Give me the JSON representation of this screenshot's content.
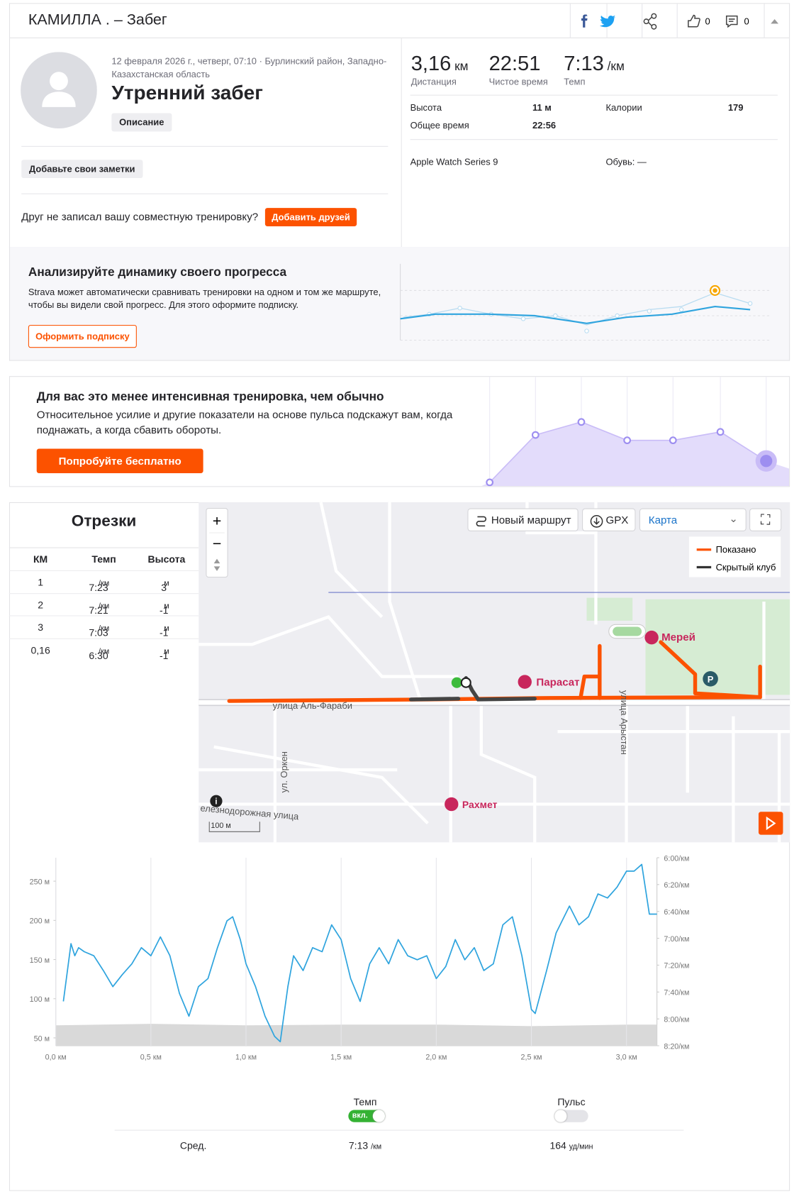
{
  "header": {
    "title": "КАМИЛЛА . – Забег",
    "kudos": "0",
    "comments": "0"
  },
  "activity": {
    "meta": "12 февраля 2026 г., четверг, 07:10 · Бурлинский район, Западно-Казахстанская область",
    "name": "Утренний забег",
    "description_button": "Описание",
    "notes_button": "Добавьте свои заметки",
    "friends_text": "Друг не записал вашу совместную тренировку?",
    "friends_button": "Добавить друзей"
  },
  "stats": {
    "primary": [
      {
        "value": "3,16",
        "unit": "км",
        "label": "Дистанция"
      },
      {
        "value": "22:51",
        "label": "Чистое время"
      },
      {
        "value": "7:13",
        "unit": "/км",
        "label": "Темп"
      }
    ],
    "secondary": [
      {
        "label": "Высота",
        "value": "11 м"
      },
      {
        "label": "Калории",
        "value": "179"
      },
      {
        "label": "Общее время",
        "value": "22:56"
      }
    ],
    "device": "Apple Watch Series 9",
    "shoes": "Обувь: —"
  },
  "progress_promo": {
    "title": "Анализируйте динамику своего прогресса",
    "text": "Strava может автоматически сравнивать тренировки на одном и том же маршруте, чтобы вы видели свой прогресс. Для этого оформите подписку.",
    "button": "Оформить подписку"
  },
  "intensity_promo": {
    "title": "Для вас это менее интенсивная тренировка, чем обычно",
    "text": "Относительное усилие и другие показатели на основе пульса подскажут вам, когда поднажать, а когда сбавить обороты.",
    "button": "Попробуйте бесплатно"
  },
  "splits": {
    "title": "Отрезки",
    "columns": [
      "КМ",
      "Темп",
      "Высота"
    ],
    "rows": [
      {
        "km": "1",
        "pace": "7:23",
        "pace_unit": "/км",
        "elev": "3",
        "elev_unit": "м"
      },
      {
        "km": "2",
        "pace": "7:21",
        "pace_unit": "/км",
        "elev": "-1",
        "elev_unit": "м"
      },
      {
        "km": "3",
        "pace": "7:03",
        "pace_unit": "/км",
        "elev": "-1",
        "elev_unit": "м"
      },
      {
        "km": "0,16",
        "pace": "6:30",
        "pace_unit": "/км",
        "elev": "-1",
        "elev_unit": "м"
      }
    ]
  },
  "map": {
    "new_route": "Новый маршрут",
    "gpx": "GPX",
    "map_type": "Карта",
    "legend": [
      "Показано",
      "Скрытый клуб"
    ],
    "places": [
      "Мерей",
      "Парасат",
      "Рахмет"
    ],
    "streets": [
      "улица Аль-Фараби",
      "улица Арыстан",
      "ул. Оркен",
      "елезнодорожная улица"
    ],
    "scale": "100 м"
  },
  "chart": {
    "type": "line",
    "xlim": [
      0,
      3.16
    ],
    "xticks": [
      {
        "value": 0,
        "label": "0,0 км"
      },
      {
        "value": 0.5,
        "label": "0,5 км"
      },
      {
        "value": 1,
        "label": "1,0 км"
      },
      {
        "value": 1.5,
        "label": "1,5 км"
      },
      {
        "value": 2,
        "label": "2,0 км"
      },
      {
        "value": 2.5,
        "label": "2,5 км"
      },
      {
        "value": 3,
        "label": "3,0 км"
      }
    ],
    "ylim": [
      40,
      280
    ],
    "yticks": [
      {
        "value": 50,
        "label": "50 м"
      },
      {
        "value": 100,
        "label": "100 м"
      },
      {
        "value": 150,
        "label": "150 м"
      },
      {
        "value": 200,
        "label": "200 м"
      },
      {
        "value": 250,
        "label": "250 м"
      }
    ],
    "y2lim": [
      360,
      500
    ],
    "y2_inverted": true,
    "y2ticks": [
      {
        "value": 360,
        "label": "6:00/км"
      },
      {
        "value": 380,
        "label": "6:20/км"
      },
      {
        "value": 400,
        "label": "6:40/км"
      },
      {
        "value": 420,
        "label": "7:00/км"
      },
      {
        "value": 440,
        "label": "7:20/км"
      },
      {
        "value": 460,
        "label": "7:40/км"
      },
      {
        "value": 480,
        "label": "8:00/км"
      },
      {
        "value": 500,
        "label": "8:20/км"
      }
    ],
    "grid": "x",
    "area": {
      "color": "#d9d9d9",
      "x": [
        0,
        0.5,
        1,
        1.5,
        2,
        2.5,
        3,
        3.16
      ],
      "values": [
        66,
        68,
        66,
        67,
        67,
        65,
        67,
        67
      ]
    },
    "series": [
      {
        "color": "#2fa4de",
        "axis": "y2",
        "x": [
          0.04,
          0.08,
          0.1,
          0.12,
          0.15,
          0.2,
          0.25,
          0.3,
          0.35,
          0.4,
          0.45,
          0.5,
          0.55,
          0.6,
          0.65,
          0.7,
          0.75,
          0.8,
          0.85,
          0.9,
          0.93,
          0.97,
          1.0,
          1.05,
          1.1,
          1.15,
          1.18,
          1.22,
          1.25,
          1.3,
          1.35,
          1.4,
          1.45,
          1.5,
          1.55,
          1.6,
          1.65,
          1.7,
          1.75,
          1.8,
          1.85,
          1.9,
          1.95,
          2.0,
          2.05,
          2.1,
          2.15,
          2.2,
          2.25,
          2.3,
          2.35,
          2.4,
          2.45,
          2.5,
          2.52,
          2.58,
          2.63,
          2.7,
          2.75,
          2.8,
          2.85,
          2.9,
          2.95,
          3.0,
          3.04,
          3.08,
          3.12,
          3.16
        ],
        "values": [
          467,
          424,
          433,
          427,
          430,
          433,
          444,
          456,
          447,
          439,
          427,
          433,
          419,
          433,
          461,
          478,
          456,
          450,
          427,
          407,
          404,
          421,
          439,
          456,
          478,
          493,
          497,
          456,
          433,
          444,
          427,
          430,
          410,
          421,
          450,
          467,
          439,
          427,
          439,
          421,
          433,
          436,
          433,
          450,
          441,
          421,
          436,
          427,
          444,
          439,
          410,
          404,
          433,
          473,
          476,
          444,
          416,
          396,
          410,
          404,
          387,
          390,
          382,
          370,
          370,
          365,
          402,
          402
        ]
      }
    ]
  },
  "summary": {
    "pace_toggle": "Темп",
    "pace_state": "вкл.",
    "hr_toggle": "Пульс",
    "avg_label": "Сред.",
    "avg_pace": "7:13",
    "avg_pace_unit": "/км",
    "avg_hr": "164",
    "avg_hr_unit": "уд/мин"
  }
}
